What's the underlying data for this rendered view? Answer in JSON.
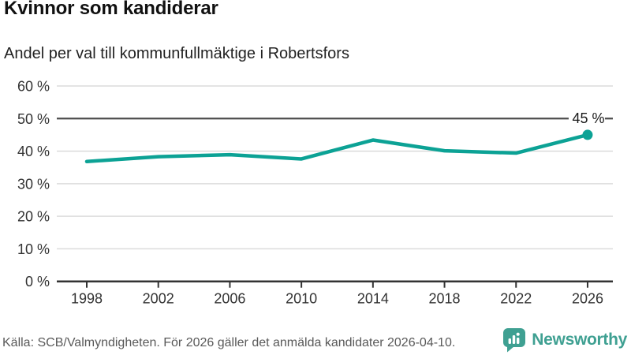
{
  "header": {
    "title": "Kvinnor som kandiderar",
    "subtitle": "Andel per val till kommunfullmäktige i Robertsfors"
  },
  "chart_data": {
    "type": "line",
    "title": "Kvinnor som kandiderar",
    "subtitle": "Andel per val till kommunfullmäktige i Robertsfors",
    "categories": [
      "1998",
      "2002",
      "2006",
      "2010",
      "2014",
      "2018",
      "2022",
      "2026"
    ],
    "values": [
      36.8,
      38.3,
      38.9,
      37.6,
      43.4,
      40.1,
      39.4,
      45.0
    ],
    "unit": "%",
    "ylim": [
      0,
      60
    ],
    "y_ticks": [
      0,
      10,
      20,
      30,
      40,
      50,
      60
    ],
    "y_tick_suffix": " %",
    "reference_line": 50,
    "last_point_label": "45 %",
    "legend": "none",
    "grid": true
  },
  "footer": {
    "source": "Källa: SCB/Valmyndigheten. För 2026 gäller det anmälda kandidater 2026-04-10.",
    "brand": "Newsworthy"
  },
  "colors": {
    "accent": "#0CA295",
    "logo_teal": "#3FA092",
    "gridline": "#DBDBDB",
    "reference_line": "#4D4D4D",
    "axis": "#333333",
    "tick_label": "#333333",
    "title": "#111111",
    "subtitle": "#222222",
    "source_text": "#595959",
    "background": "#FFFFFF"
  }
}
